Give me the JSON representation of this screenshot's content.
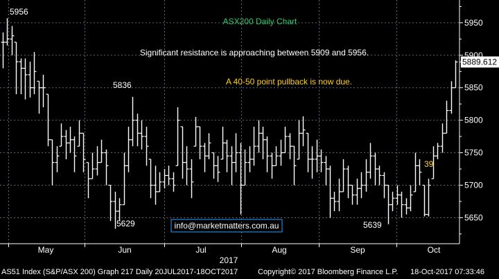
{
  "chart_data": {
    "type": "ohlc",
    "title": "ASX200 Daily Chart",
    "annotations": {
      "resistance_note": "Significant resistance is approaching between 5909 and 5956.",
      "pullback_note": "A 40-50 point pullback is now due.",
      "email": "info@marketmatters.com.au",
      "label_5956": "5956",
      "label_5836": "5836",
      "label_5629": "5629",
      "label_5639": "5639",
      "label_39": "39"
    },
    "year_label": "2017",
    "x_months": [
      "May",
      "Jun",
      "Jul",
      "Aug",
      "Sep",
      "Oct"
    ],
    "y_ticks": [
      5650,
      5700,
      5750,
      5800,
      5850,
      5900,
      5950
    ],
    "ylim": [
      5610,
      5985
    ],
    "last_price": "5889.612",
    "last_value": 5889.612,
    "bars": [
      {
        "h": 5935,
        "l": 5880,
        "c": 5920
      },
      {
        "h": 5957,
        "l": 5915,
        "c": 5925
      },
      {
        "h": 5945,
        "l": 5900,
        "c": 5930
      },
      {
        "h": 5920,
        "l": 5840,
        "c": 5890
      },
      {
        "h": 5895,
        "l": 5840,
        "c": 5880
      },
      {
        "h": 5895,
        "l": 5832,
        "c": 5870
      },
      {
        "h": 5890,
        "l": 5835,
        "c": 5850
      },
      {
        "h": 5905,
        "l": 5840,
        "c": 5875
      },
      {
        "h": 5860,
        "l": 5810,
        "c": 5850
      },
      {
        "h": 5870,
        "l": 5820,
        "c": 5850
      },
      {
        "h": 5840,
        "l": 5760,
        "c": 5770
      },
      {
        "h": 5770,
        "l": 5700,
        "c": 5735
      },
      {
        "h": 5760,
        "l": 5720,
        "c": 5745
      },
      {
        "h": 5795,
        "l": 5760,
        "c": 5775
      },
      {
        "h": 5785,
        "l": 5740,
        "c": 5765
      },
      {
        "h": 5790,
        "l": 5750,
        "c": 5770
      },
      {
        "h": 5775,
        "l": 5720,
        "c": 5745
      },
      {
        "h": 5800,
        "l": 5760,
        "c": 5780
      },
      {
        "h": 5780,
        "l": 5720,
        "c": 5740
      },
      {
        "h": 5735,
        "l": 5680,
        "c": 5710
      },
      {
        "h": 5750,
        "l": 5710,
        "c": 5725
      },
      {
        "h": 5760,
        "l": 5715,
        "c": 5735
      },
      {
        "h": 5770,
        "l": 5735,
        "c": 5750
      },
      {
        "h": 5755,
        "l": 5700,
        "c": 5730
      },
      {
        "h": 5700,
        "l": 5645,
        "c": 5675
      },
      {
        "h": 5690,
        "l": 5633,
        "c": 5660
      },
      {
        "h": 5680,
        "l": 5645,
        "c": 5670
      },
      {
        "h": 5750,
        "l": 5670,
        "c": 5730
      },
      {
        "h": 5790,
        "l": 5720,
        "c": 5770
      },
      {
        "h": 5836,
        "l": 5760,
        "c": 5800
      },
      {
        "h": 5810,
        "l": 5760,
        "c": 5780
      },
      {
        "h": 5800,
        "l": 5755,
        "c": 5775
      },
      {
        "h": 5790,
        "l": 5730,
        "c": 5760
      },
      {
        "h": 5740,
        "l": 5680,
        "c": 5700
      },
      {
        "h": 5730,
        "l": 5670,
        "c": 5690
      },
      {
        "h": 5720,
        "l": 5690,
        "c": 5705
      },
      {
        "h": 5725,
        "l": 5695,
        "c": 5715
      },
      {
        "h": 5730,
        "l": 5700,
        "c": 5710
      },
      {
        "h": 5720,
        "l": 5690,
        "c": 5700
      },
      {
        "h": 5820,
        "l": 5730,
        "c": 5800
      },
      {
        "h": 5790,
        "l": 5710,
        "c": 5735
      },
      {
        "h": 5760,
        "l": 5700,
        "c": 5725
      },
      {
        "h": 5740,
        "l": 5680,
        "c": 5705
      },
      {
        "h": 5805,
        "l": 5760,
        "c": 5790
      },
      {
        "h": 5790,
        "l": 5740,
        "c": 5760
      },
      {
        "h": 5765,
        "l": 5720,
        "c": 5745
      },
      {
        "h": 5780,
        "l": 5740,
        "c": 5765
      },
      {
        "h": 5750,
        "l": 5710,
        "c": 5730
      },
      {
        "h": 5745,
        "l": 5705,
        "c": 5720
      },
      {
        "h": 5790,
        "l": 5740,
        "c": 5765
      },
      {
        "h": 5770,
        "l": 5720,
        "c": 5745
      },
      {
        "h": 5760,
        "l": 5700,
        "c": 5735
      },
      {
        "h": 5780,
        "l": 5720,
        "c": 5750
      },
      {
        "h": 5765,
        "l": 5655,
        "c": 5700
      },
      {
        "h": 5755,
        "l": 5700,
        "c": 5735
      },
      {
        "h": 5760,
        "l": 5720,
        "c": 5740
      },
      {
        "h": 5790,
        "l": 5730,
        "c": 5760
      },
      {
        "h": 5800,
        "l": 5750,
        "c": 5780
      },
      {
        "h": 5790,
        "l": 5740,
        "c": 5770
      },
      {
        "h": 5775,
        "l": 5720,
        "c": 5745
      },
      {
        "h": 5750,
        "l": 5710,
        "c": 5730
      },
      {
        "h": 5760,
        "l": 5730,
        "c": 5745
      },
      {
        "h": 5770,
        "l": 5730,
        "c": 5750
      },
      {
        "h": 5790,
        "l": 5750,
        "c": 5775
      },
      {
        "h": 5780,
        "l": 5740,
        "c": 5760
      },
      {
        "h": 5760,
        "l": 5700,
        "c": 5730
      },
      {
        "h": 5800,
        "l": 5740,
        "c": 5780
      },
      {
        "h": 5806,
        "l": 5760,
        "c": 5785
      },
      {
        "h": 5780,
        "l": 5720,
        "c": 5740
      },
      {
        "h": 5760,
        "l": 5710,
        "c": 5740
      },
      {
        "h": 5770,
        "l": 5720,
        "c": 5745
      },
      {
        "h": 5755,
        "l": 5720,
        "c": 5735
      },
      {
        "h": 5745,
        "l": 5700,
        "c": 5725
      },
      {
        "h": 5730,
        "l": 5650,
        "c": 5680
      },
      {
        "h": 5690,
        "l": 5660,
        "c": 5675
      },
      {
        "h": 5710,
        "l": 5660,
        "c": 5690
      },
      {
        "h": 5740,
        "l": 5690,
        "c": 5725
      },
      {
        "h": 5730,
        "l": 5680,
        "c": 5700
      },
      {
        "h": 5700,
        "l": 5670,
        "c": 5685
      },
      {
        "h": 5710,
        "l": 5670,
        "c": 5695
      },
      {
        "h": 5720,
        "l": 5680,
        "c": 5700
      },
      {
        "h": 5740,
        "l": 5690,
        "c": 5720
      },
      {
        "h": 5765,
        "l": 5710,
        "c": 5745
      },
      {
        "h": 5750,
        "l": 5700,
        "c": 5725
      },
      {
        "h": 5730,
        "l": 5700,
        "c": 5715
      },
      {
        "h": 5720,
        "l": 5680,
        "c": 5700
      },
      {
        "h": 5700,
        "l": 5640,
        "c": 5670
      },
      {
        "h": 5690,
        "l": 5660,
        "c": 5680
      },
      {
        "h": 5700,
        "l": 5670,
        "c": 5685
      },
      {
        "h": 5690,
        "l": 5650,
        "c": 5670
      },
      {
        "h": 5680,
        "l": 5655,
        "c": 5665
      },
      {
        "h": 5700,
        "l": 5660,
        "c": 5685
      },
      {
        "h": 5750,
        "l": 5690,
        "c": 5730
      },
      {
        "h": 5740,
        "l": 5700,
        "c": 5720
      },
      {
        "h": 5700,
        "l": 5652,
        "c": 5655
      },
      {
        "h": 5710,
        "l": 5652,
        "c": 5700
      },
      {
        "h": 5760,
        "l": 5710,
        "c": 5745
      },
      {
        "h": 5765,
        "l": 5740,
        "c": 5760
      },
      {
        "h": 5795,
        "l": 5750,
        "c": 5780
      },
      {
        "h": 5830,
        "l": 5780,
        "c": 5815
      },
      {
        "h": 5860,
        "l": 5810,
        "c": 5850
      },
      {
        "h": 5892,
        "l": 5850,
        "c": 5889.6
      }
    ],
    "colors": {
      "background": "#000000",
      "bars": "#ffffff",
      "title": "#2ecc71",
      "annotation_yellow": "#ffd11a",
      "email_box": "#29a0ff",
      "grid": "#5a6a7a",
      "last_price_box": "#ffffff"
    }
  },
  "footer": {
    "index": "AS51 Index (S&P/ASX 200) Graph 217  Daily 20JUL2017-18OCT2017",
    "copyright": "Copyright© 2017 Bloomberg Finance L.P.",
    "timestamp": "18-Oct-2017 07:33:46"
  }
}
